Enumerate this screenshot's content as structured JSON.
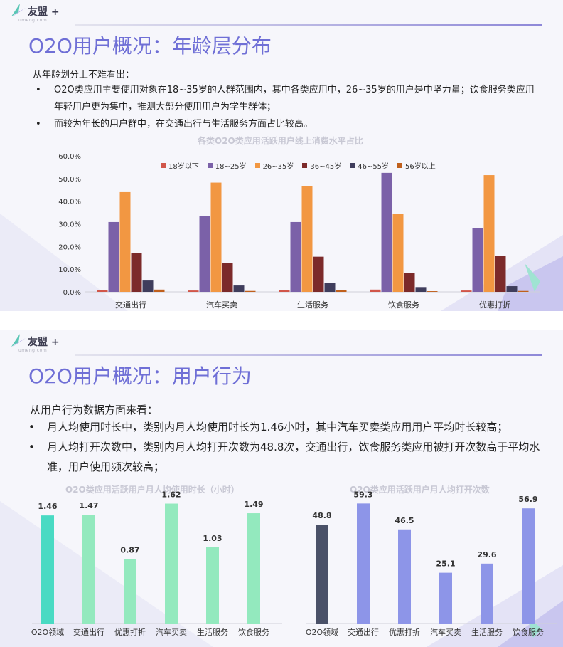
{
  "slide1": {
    "logo": {
      "name": "友盟",
      "plus": "+",
      "domain": "umeng.com"
    },
    "title": "O2O用户概况：年龄层分布",
    "intro": "从年龄划分上不难看出：",
    "bullets": [
      "O2O类应用主要使用对象在18~35岁的人群范围内，其中各类应用中，26~35岁的用户是中坚力量；饮食服务类应用年轻用户更为集中，推测大部分使用用户为学生群体；",
      "而较为年长的用户群中，在交通出行与生活服务方面占比较高。"
    ],
    "bullet_symbol": "•",
    "colors": {
      "accent": "#6f6fd6",
      "bg": "#f6f6fb"
    }
  },
  "slide2": {
    "logo": {
      "name": "友盟",
      "plus": "+",
      "domain": "umeng.com"
    },
    "title": "O2O用户概况：用户行为",
    "intro": "从用户行为数据方面来看：",
    "bullets": [
      "月人均使用时长中，类别内月人均使用时长为1.46小时，其中汽车买卖类应用用户平均时长较高；",
      "月人均打开次数中，类别内月人均打开次数为48.8次，交通出行，饮食服务类应用被打开次数高于平均水准，用户使用频次较高；"
    ],
    "bullet_symbol": "•"
  },
  "chart_data": [
    {
      "type": "bar",
      "title": "各类O2O类应用活跃用户线上消费水平占比",
      "categories": [
        "交通出行",
        "汽车买卖",
        "生活服务",
        "饮食服务",
        "优惠打折"
      ],
      "ylim": [
        0,
        60
      ],
      "yticks": [
        "0.0%",
        "10.0%",
        "20.0%",
        "30.0%",
        "40.0%",
        "50.0%",
        "60.0%"
      ],
      "legend_position": "top",
      "series": [
        {
          "name": "18岁以下",
          "color": "#d1564a",
          "values": [
            0.8,
            0.6,
            0.9,
            1.0,
            0.6
          ]
        },
        {
          "name": "18~25岁",
          "color": "#7b61a8",
          "values": [
            30.8,
            33.5,
            30.8,
            52.5,
            28.0
          ]
        },
        {
          "name": "26~35岁",
          "color": "#f29742",
          "values": [
            44.0,
            48.2,
            46.7,
            34.3,
            51.5
          ]
        },
        {
          "name": "36~45岁",
          "color": "#7c2a2a",
          "values": [
            17.0,
            12.8,
            15.5,
            8.2,
            15.8
          ]
        },
        {
          "name": "46~55岁",
          "color": "#3f3d5c",
          "values": [
            5.0,
            2.8,
            3.8,
            2.1,
            2.5
          ]
        },
        {
          "name": "56岁以上",
          "color": "#c0601c",
          "values": [
            1.0,
            0.4,
            0.8,
            0.3,
            0.4
          ]
        }
      ]
    },
    {
      "type": "bar",
      "title": "O2O类应用活跃用户月人均使用时长（小时）",
      "categories": [
        "O2O领域",
        "交通出行",
        "优惠打折",
        "汽车买卖",
        "生活服务",
        "饮食服务"
      ],
      "values": [
        1.46,
        1.47,
        0.87,
        1.62,
        1.03,
        1.49
      ],
      "labels": [
        "1.46",
        "1.47",
        "0.87",
        "1.62",
        "1.03",
        "1.49"
      ],
      "colors": [
        "#49dac3",
        "#93e9be",
        "#93e9be",
        "#93e9be",
        "#93e9be",
        "#93e9be"
      ],
      "ylim": [
        0,
        1.75
      ]
    },
    {
      "type": "bar",
      "title": "O2O类应用活跃用户月人均打开次数",
      "categories": [
        "O2O领域",
        "交通出行",
        "优惠打折",
        "汽车买卖",
        "生活服务",
        "饮食服务"
      ],
      "values": [
        48.8,
        59.3,
        46.5,
        25.1,
        29.6,
        56.9
      ],
      "labels": [
        "48.8",
        "59.3",
        "46.5",
        "25.1",
        "29.6",
        "56.9"
      ],
      "colors": [
        "#4a5168",
        "#8d95e8",
        "#8d95e8",
        "#8d95e8",
        "#8d95e8",
        "#8d95e8"
      ],
      "ylim": [
        0,
        64
      ]
    }
  ]
}
